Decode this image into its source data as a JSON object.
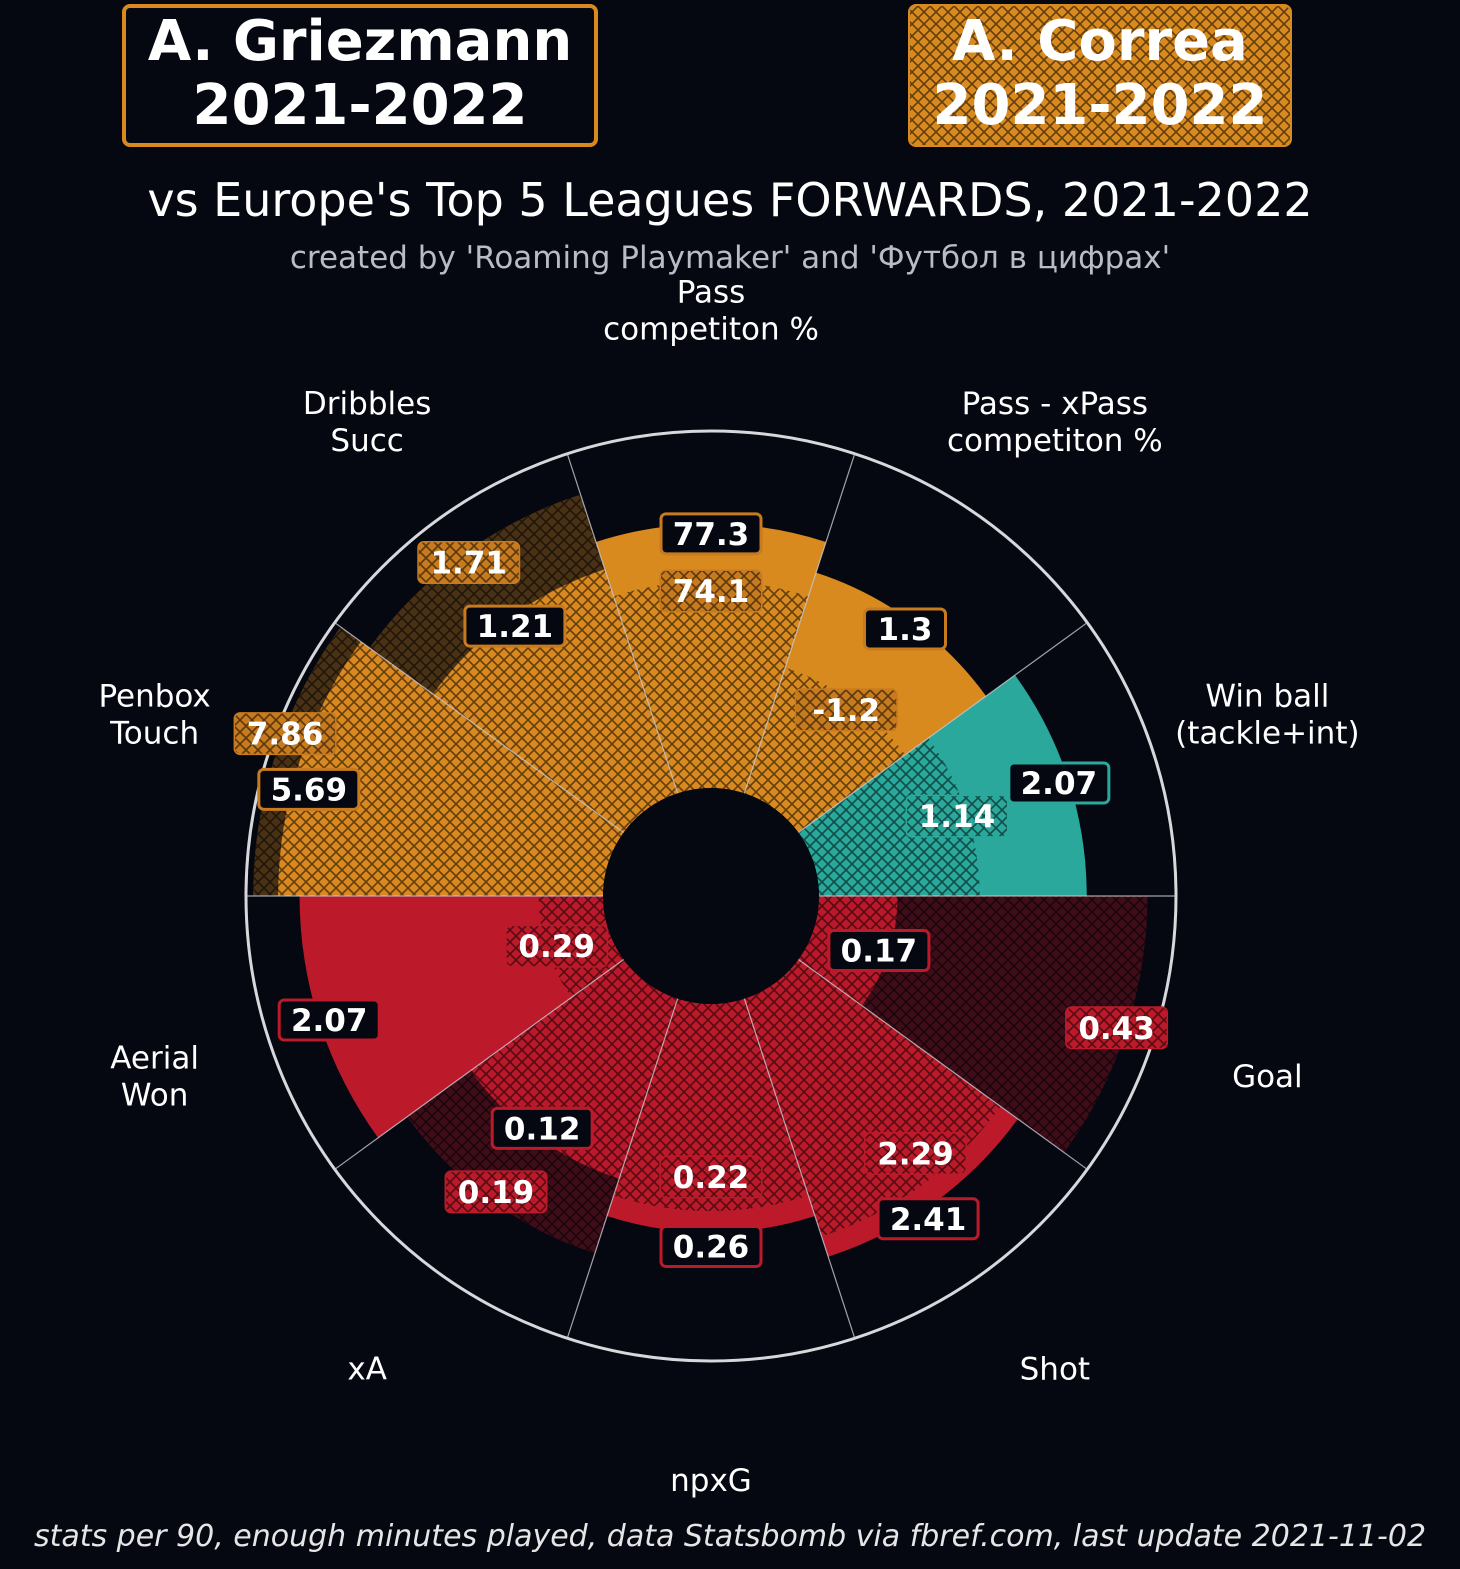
{
  "player_a": {
    "name": "A. Griezmann",
    "season": "2021-2022"
  },
  "player_b": {
    "name": "A. Correa",
    "season": "2021-2022"
  },
  "title": "vs Europe's Top 5 Leagues FORWARDS, 2021-2022",
  "subtitle": "created by 'Roaming Playmaker' and 'Футбол в цифрах'",
  "footer": "stats per 90, enough minutes played, data Statsbomb via fbref.com, last update 2021-11-02",
  "colors": {
    "background": "#050811",
    "passing": "#d98a1f",
    "defending": "#2aa89c",
    "attacking": "#bc1a2b",
    "label_border_passing": "#c77a1e",
    "label_border_defending": "#2aa89c",
    "label_border_attacking": "#bc1a2b"
  },
  "chart_data": {
    "type": "polar_bar",
    "legend": [
      "A. Griezmann 2021-2022",
      "A. Correa 2021-2022"
    ],
    "series": [
      {
        "name": "A. Griezmann 2021-2022",
        "style": "solid",
        "values": [
          "77.3",
          "1.3",
          "2.07",
          "0.17",
          "2.41",
          "0.26",
          "0.12",
          "2.07",
          "5.69",
          "1.21"
        ]
      },
      {
        "name": "A. Correa 2021-2022",
        "style": "hatched",
        "values": [
          "74.1",
          "-1.2",
          "1.14",
          "0.43",
          "2.29",
          "0.22",
          "0.19",
          "0.29",
          "7.86",
          "1.71"
        ]
      }
    ],
    "bars": [
      {
        "category": "Pass\ncompetiton %",
        "group": "passing",
        "a_percentile": 74,
        "b_percentile": 58
      },
      {
        "category": "Pass - xPass\ncompetiton %",
        "group": "passing",
        "a_percentile": 65,
        "b_percentile": 37
      },
      {
        "category": "Win ball\n(tackle+int)",
        "group": "defending",
        "a_percentile": 75,
        "b_percentile": 45
      },
      {
        "category": "Goal",
        "group": "attacking",
        "a_percentile": 22,
        "b_percentile": 92
      },
      {
        "category": "Shot",
        "group": "attacking",
        "a_percentile": 76,
        "b_percentile": 70
      },
      {
        "category": "npxG",
        "group": "attacking",
        "a_percentile": 64,
        "b_percentile": 58
      },
      {
        "category": "xA",
        "group": "attacking",
        "a_percentile": 53,
        "b_percentile": 75
      },
      {
        "category": "Aerial\nWon",
        "group": "attacking",
        "a_percentile": 85,
        "b_percentile": 18
      },
      {
        "category": "Penbox\nTouch",
        "group": "passing",
        "a_percentile": 91,
        "b_percentile": 98
      },
      {
        "category": "Dribbles\nSucc",
        "group": "passing",
        "a_percentile": 66,
        "b_percentile": 88
      }
    ]
  }
}
